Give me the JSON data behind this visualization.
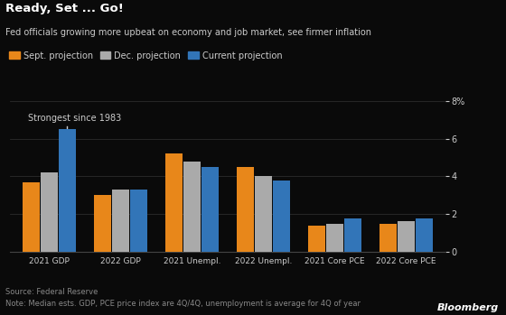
{
  "title_bold": "Ready, Set ... Go!",
  "title_sub": "Fed officials growing more upbeat on economy and job market, see firmer inflation",
  "categories": [
    "2021 GDP",
    "2022 GDP",
    "2021 Unempl.",
    "2022 Unempl.",
    "2021 Core PCE",
    "2022 Core PCE"
  ],
  "sept_projection": [
    3.7,
    3.0,
    5.2,
    4.5,
    1.4,
    1.5
  ],
  "dec_projection": [
    4.2,
    3.3,
    4.8,
    4.0,
    1.5,
    1.65
  ],
  "current_projection": [
    6.5,
    3.3,
    4.5,
    3.8,
    1.8,
    1.8
  ],
  "colors": {
    "sept": "#E8871A",
    "dec": "#AAAAAA",
    "current": "#3275B8"
  },
  "ylim": [
    0,
    8
  ],
  "yticks": [
    0,
    2,
    4,
    6,
    8
  ],
  "annotation_text": "Strongest since 1983",
  "source_line1": "Source: Federal Reserve",
  "source_line2": "Note: Median ests. GDP, PCE price index are 4Q/4Q, unemployment is average for 4Q of year",
  "bloomberg_text": "Bloomberg",
  "background_color": "#0a0a0a",
  "text_color": "#CCCCCC",
  "legend": [
    "Sept. projection",
    "Dec. projection",
    "Current projection"
  ]
}
